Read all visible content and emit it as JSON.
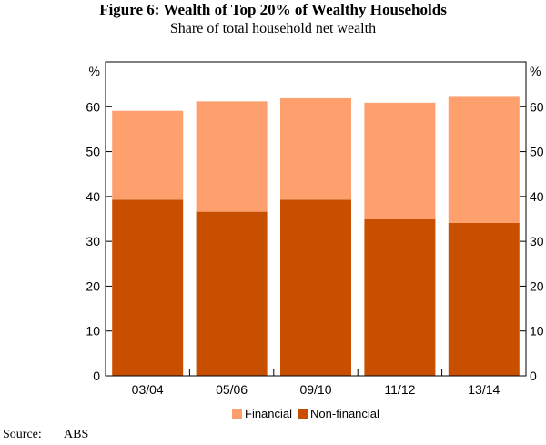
{
  "chart_data": {
    "type": "bar",
    "stacked": true,
    "title": "Figure 6: Wealth of Top 20% of Wealthy Households",
    "subtitle": "Share of total household net wealth",
    "unit_left": "%",
    "unit_right": "%",
    "categories": [
      "03/04",
      "05/06",
      "09/10",
      "11/12",
      "13/14"
    ],
    "series": [
      {
        "name": "Non-financial",
        "color": "#c94f00",
        "values": [
          39.3,
          36.6,
          39.3,
          34.9,
          34.1
        ]
      },
      {
        "name": "Financial",
        "color": "#fea06e",
        "values": [
          19.8,
          24.6,
          22.6,
          26.0,
          28.1
        ]
      }
    ],
    "ylim": [
      0,
      70
    ],
    "yticks": [
      "0",
      "10",
      "20",
      "30",
      "40",
      "50",
      "60"
    ],
    "legend_position": "bottom",
    "source_label": "Source:",
    "source_value": "ABS"
  }
}
